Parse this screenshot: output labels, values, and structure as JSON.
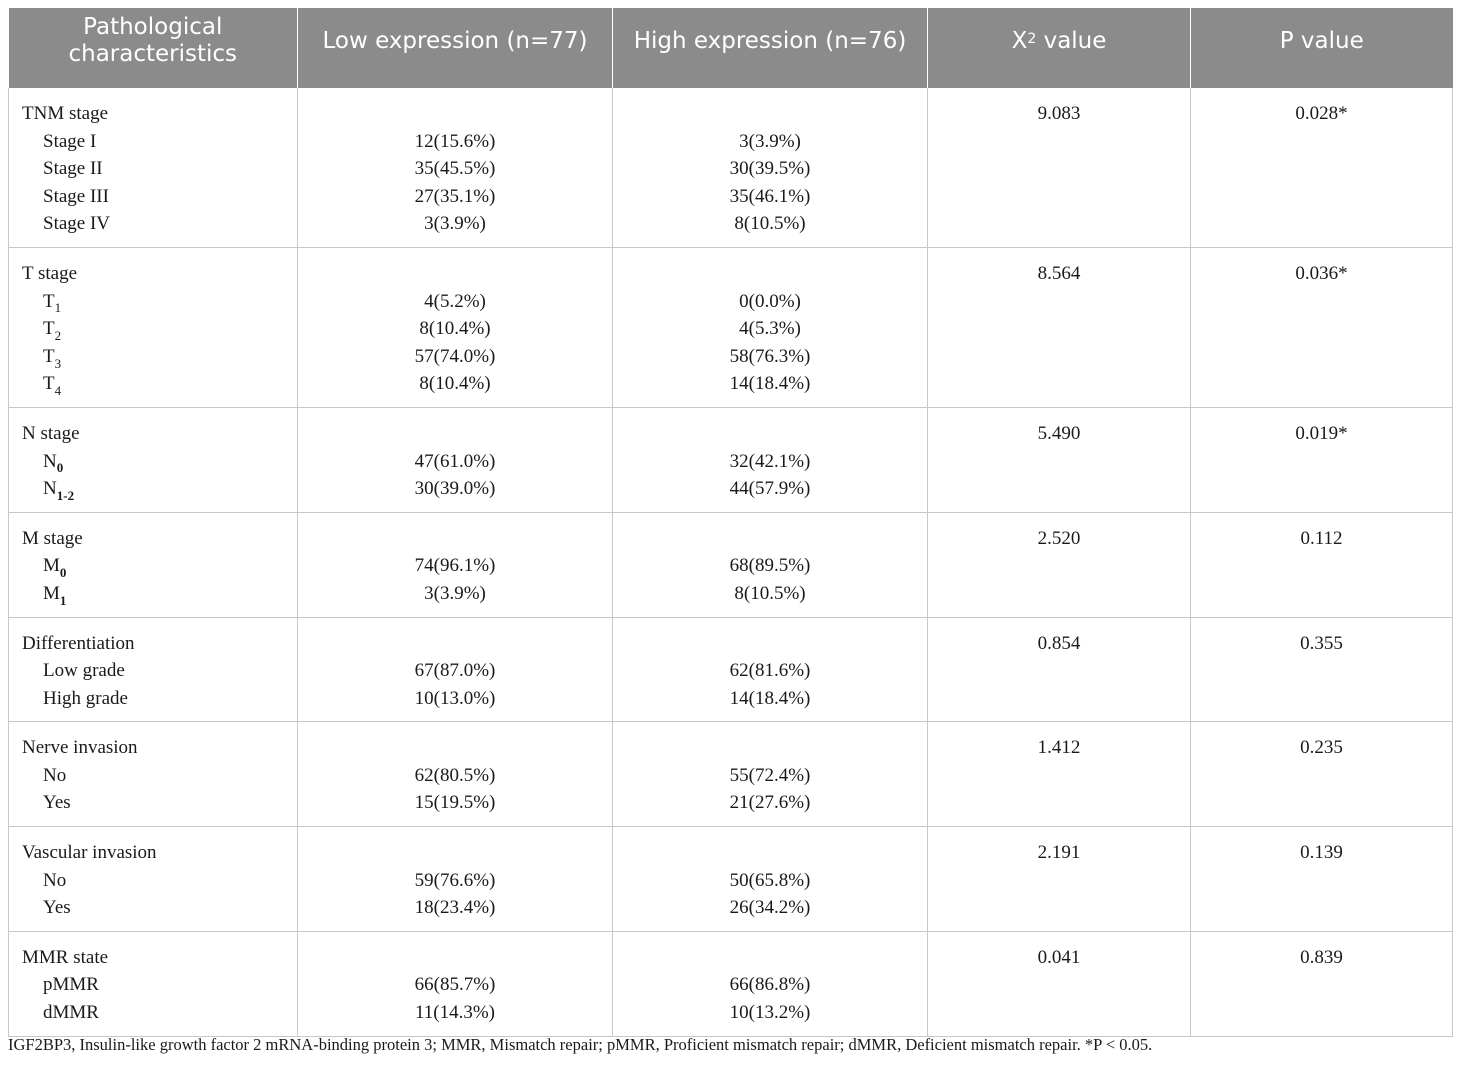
{
  "header": {
    "col1": "Pathological characteristics",
    "col2": "Low expression (n=77)",
    "col3": "High expression (n=76)",
    "col4_prefix": "X",
    "col4_sup": "2",
    "col4_suffix": " value",
    "col5": "P value"
  },
  "groups": [
    {
      "title": "TNM stage",
      "chi2": "9.083",
      "p": "0.028*",
      "rows": [
        {
          "label": "Stage I",
          "low": "12(15.6%)",
          "high": "3(3.9%)"
        },
        {
          "label": "Stage II",
          "low": "35(45.5%)",
          "high": "30(39.5%)"
        },
        {
          "label": "Stage III",
          "low": "27(35.1%)",
          "high": "35(46.1%)"
        },
        {
          "label": "Stage IV",
          "low": "3(3.9%)",
          "high": "8(10.5%)"
        }
      ]
    },
    {
      "title": "T stage",
      "chi2": "8.564",
      "p": "0.036*",
      "rows": [
        {
          "label": "T",
          "sub": "1",
          "low": "4(5.2%)",
          "high": "0(0.0%)"
        },
        {
          "label": "T",
          "sub": "2",
          "low": "8(10.4%)",
          "high": "4(5.3%)"
        },
        {
          "label": "T",
          "sub": "3",
          "low": "57(74.0%)",
          "high": "58(76.3%)"
        },
        {
          "label": "T",
          "sub": "4",
          "low": "8(10.4%)",
          "high": "14(18.4%)"
        }
      ]
    },
    {
      "title": "N stage",
      "chi2": "5.490",
      "p": "0.019*",
      "rows": [
        {
          "label": "N",
          "sub": "0",
          "low": "47(61.0%)",
          "high": "32(42.1%)"
        },
        {
          "label": "N",
          "sub": "1-2",
          "low": "30(39.0%)",
          "high": "44(57.9%)"
        }
      ]
    },
    {
      "title": "M stage",
      "chi2": "2.520",
      "p": "0.112",
      "rows": [
        {
          "label": "M",
          "sub": "0",
          "low": "74(96.1%)",
          "high": "68(89.5%)"
        },
        {
          "label": "M",
          "sub": "1",
          "low": "3(3.9%)",
          "high": "8(10.5%)"
        }
      ]
    },
    {
      "title": "Differentiation",
      "chi2": "0.854",
      "p": "0.355",
      "rows": [
        {
          "label": "Low grade",
          "low": "67(87.0%)",
          "high": "62(81.6%)"
        },
        {
          "label": "High grade",
          "low": "10(13.0%)",
          "high": "14(18.4%)"
        }
      ]
    },
    {
      "title": "Nerve invasion",
      "chi2": "1.412",
      "p": "0.235",
      "rows": [
        {
          "label": "No",
          "low": "62(80.5%)",
          "high": "55(72.4%)"
        },
        {
          "label": "Yes",
          "low": "15(19.5%)",
          "high": "21(27.6%)"
        }
      ]
    },
    {
      "title": "Vascular invasion",
      "chi2": "2.191",
      "p": "0.139",
      "rows": [
        {
          "label": "No",
          "low": "59(76.6%)",
          "high": "50(65.8%)"
        },
        {
          "label": "Yes",
          "low": "18(23.4%)",
          "high": "26(34.2%)"
        }
      ]
    },
    {
      "title": "MMR state",
      "chi2": "0.041",
      "p": "0.839",
      "rows": [
        {
          "label": "pMMR",
          "low": "66(85.7%)",
          "high": "66(86.8%)"
        },
        {
          "label": "dMMR",
          "low": "11(14.3%)",
          "high": "10(13.2%)"
        }
      ]
    }
  ],
  "footnote": "IGF2BP3, Insulin-like growth factor 2 mRNA-binding protein 3; MMR, Mismatch repair; pMMR, Proficient mismatch repair; dMMR, Deficient mismatch repair. *P < 0.05."
}
